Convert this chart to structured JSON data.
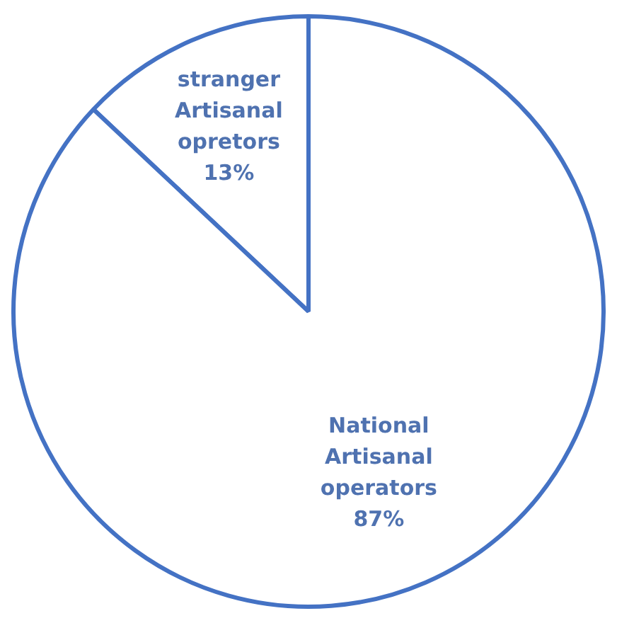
{
  "chart_data": {
    "type": "pie",
    "categories": [
      "stranger Artisanal opretors",
      "National Artisanal operators"
    ],
    "values": [
      13,
      87
    ],
    "colors": [
      "#ffffff",
      "#ffffff"
    ],
    "value_labels": [
      "13%",
      "87%"
    ]
  }
}
